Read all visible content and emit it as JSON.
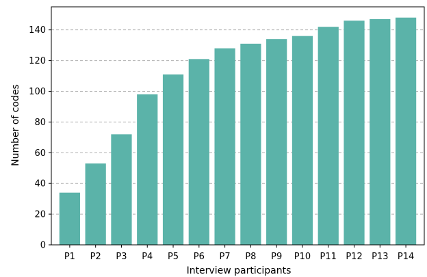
{
  "chart_data": {
    "type": "bar",
    "categories": [
      "P1",
      "P2",
      "P3",
      "P4",
      "P5",
      "P6",
      "P7",
      "P8",
      "P9",
      "P10",
      "P11",
      "P12",
      "P13",
      "P14"
    ],
    "values": [
      34,
      53,
      72,
      98,
      111,
      121,
      128,
      131,
      134,
      136,
      142,
      146,
      147,
      148
    ],
    "title": "",
    "xlabel": "Interview participants",
    "ylabel": "Number of codes",
    "ylim": [
      0,
      155
    ],
    "yticks": [
      0,
      20,
      40,
      60,
      80,
      100,
      120,
      140
    ],
    "grid": "horizontal-dashed",
    "bar_color": "#5bb3a9",
    "grid_color": "#b0b0b0",
    "axis_color": "#000000"
  }
}
